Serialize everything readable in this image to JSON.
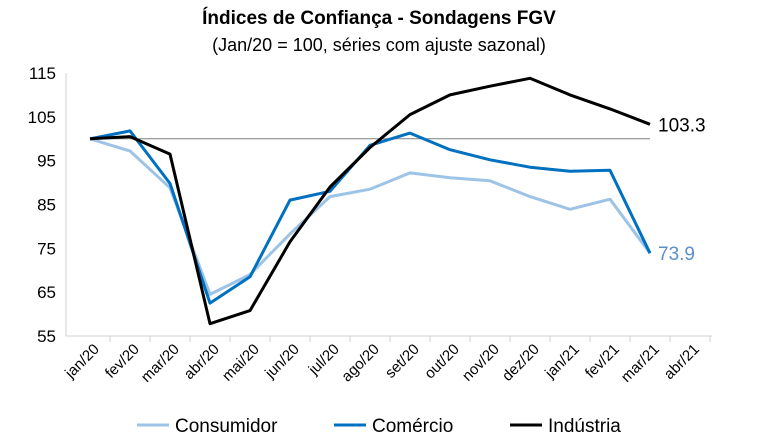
{
  "chart_data": {
    "type": "line",
    "title": "Índices de Confiança - Sondagens FGV",
    "subtitle": "(Jan/20 = 100, séries com ajuste sazonal)",
    "categories": [
      "jan/20",
      "fev/20",
      "mar/20",
      "abr/20",
      "mai/20",
      "jun/20",
      "jul/20",
      "ago/20",
      "set/20",
      "out/20",
      "nov/20",
      "dez/20",
      "jan/21",
      "fev/21",
      "mar/21",
      "abr/21"
    ],
    "ylim": [
      55,
      115
    ],
    "yticks": [
      55,
      65,
      75,
      85,
      95,
      105,
      115
    ],
    "reference_line": 100,
    "grid": false,
    "legend_position": "bottom",
    "series": [
      {
        "name": "Consumidor",
        "color": "#9dc3e6",
        "values": [
          100,
          97.2,
          88.8,
          64.5,
          69.0,
          78.3,
          86.8,
          88.5,
          92.2,
          91.1,
          90.4,
          86.8,
          83.9,
          86.2,
          73.9,
          null
        ],
        "end_label": "73.9"
      },
      {
        "name": "Comércio",
        "color": "#0070c0",
        "values": [
          100,
          101.8,
          89.8,
          62.5,
          68.5,
          86.0,
          88.0,
          98.5,
          101.3,
          97.5,
          95.2,
          93.5,
          92.6,
          92.8,
          73.9,
          null
        ],
        "end_label": ""
      },
      {
        "name": "Indústria",
        "color": "#000000",
        "values": [
          100,
          100.5,
          96.5,
          57.8,
          60.8,
          76.5,
          89.0,
          98.0,
          105.5,
          110.0,
          112.0,
          113.8,
          110.0,
          106.8,
          103.3,
          null
        ],
        "end_label": "103.3"
      }
    ]
  }
}
